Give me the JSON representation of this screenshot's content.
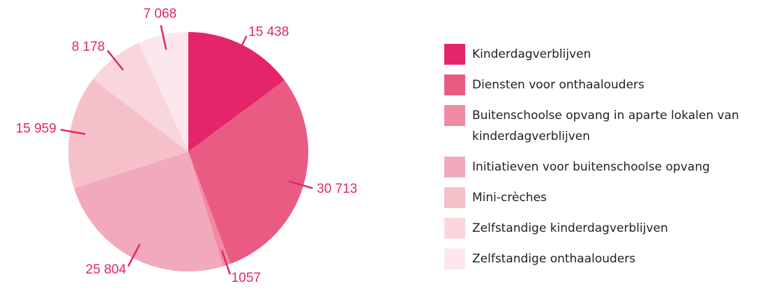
{
  "chart_data": {
    "type": "pie",
    "categories": [
      "Kinderdagverblijven",
      "Diensten voor onthaalouders",
      "Buitenschoolse opvang in aparte lokalen van kinderdagverblijven",
      "Initiatieven voor buitenschoolse opvang",
      "Mini-crèches",
      "Zelfstandige kinderdagverblijven",
      "Zelfstandige onthaalouders"
    ],
    "values": [
      15438,
      30713,
      1057,
      25804,
      15959,
      8178,
      7068
    ],
    "value_labels": [
      "15 438",
      "30 713",
      "1057",
      "25 804",
      "15 959",
      "8 178",
      "7 068"
    ],
    "colors": [
      "#e4256a",
      "#ea5b84",
      "#ef8aa2",
      "#f2a9bb",
      "#f6c0cb",
      "#f9d6dc",
      "#fce8ec"
    ],
    "legend": "right"
  }
}
